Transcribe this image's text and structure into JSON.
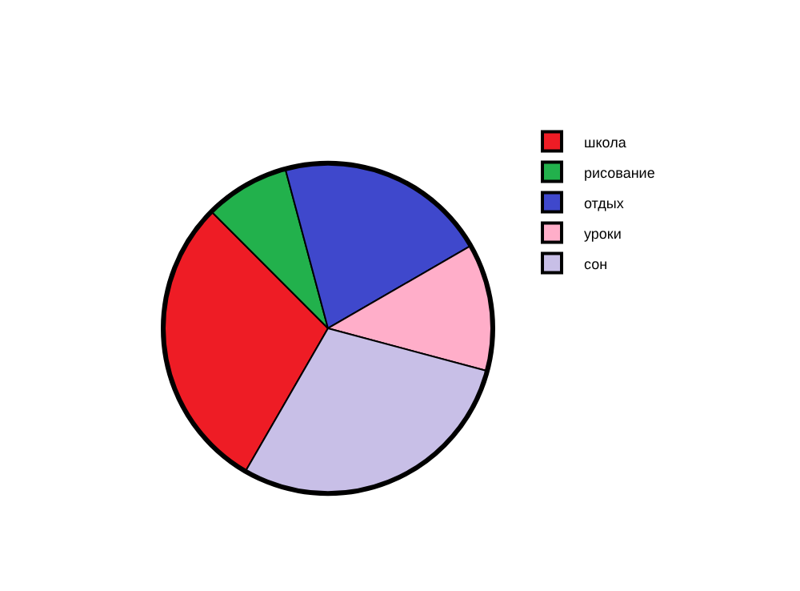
{
  "chart_data": {
    "type": "pie",
    "categories": [
      "школа",
      "рисование",
      "отдых",
      "уроки",
      "сон"
    ],
    "values": [
      29.17,
      8.33,
      20.83,
      12.5,
      29.17
    ],
    "colors": [
      "#ee1c25",
      "#22b14c",
      "#3f48cc",
      "#ffaec9",
      "#c8bfe7"
    ],
    "legend": "right"
  }
}
